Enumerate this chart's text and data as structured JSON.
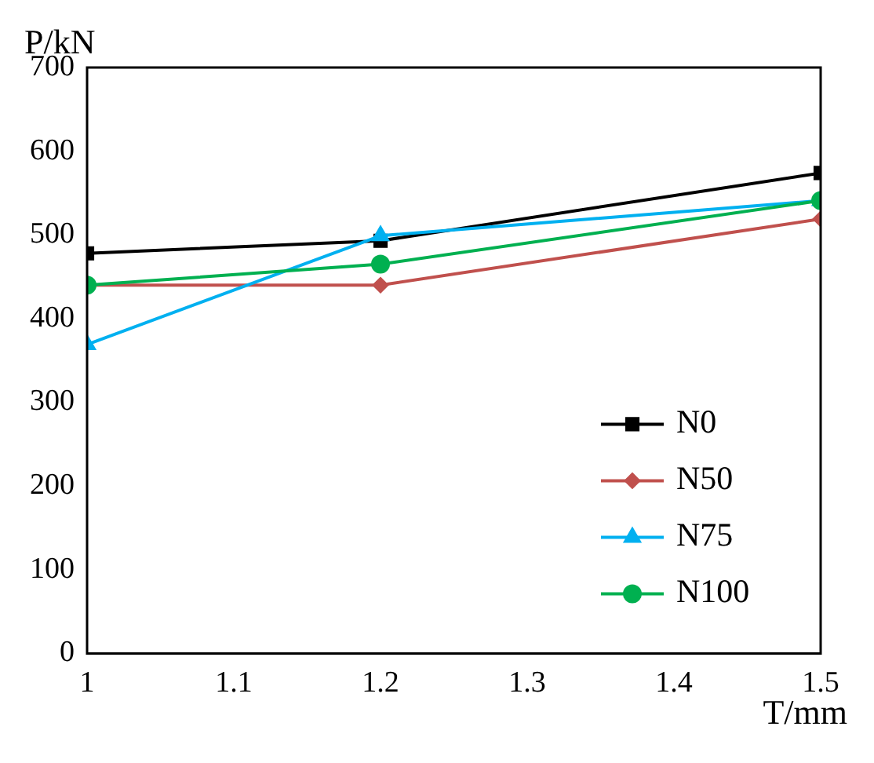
{
  "chart_data": {
    "type": "line",
    "xlabel": "T/mm",
    "ylabel": "P/kN",
    "x": [
      1,
      1.2,
      1.5
    ],
    "xlim": [
      1,
      1.5
    ],
    "xticks": [
      1,
      1.1,
      1.2,
      1.3,
      1.4,
      1.5
    ],
    "ylim": [
      0,
      700
    ],
    "yticks": [
      0,
      100,
      200,
      300,
      400,
      500,
      600,
      700
    ],
    "grid": false,
    "legend": "bottom right",
    "series": [
      {
        "name": "N0",
        "color": "#000000",
        "marker": "square",
        "values": [
          478,
          493,
          574
        ]
      },
      {
        "name": "N50",
        "color": "#c0504d",
        "marker": "diamond",
        "values": [
          440,
          440,
          519
        ]
      },
      {
        "name": "N75",
        "color": "#00b0f0",
        "marker": "triangle",
        "values": [
          369,
          499,
          541
        ]
      },
      {
        "name": "N100",
        "color": "#00b050",
        "marker": "circle",
        "values": [
          440,
          465,
          541
        ]
      }
    ]
  }
}
